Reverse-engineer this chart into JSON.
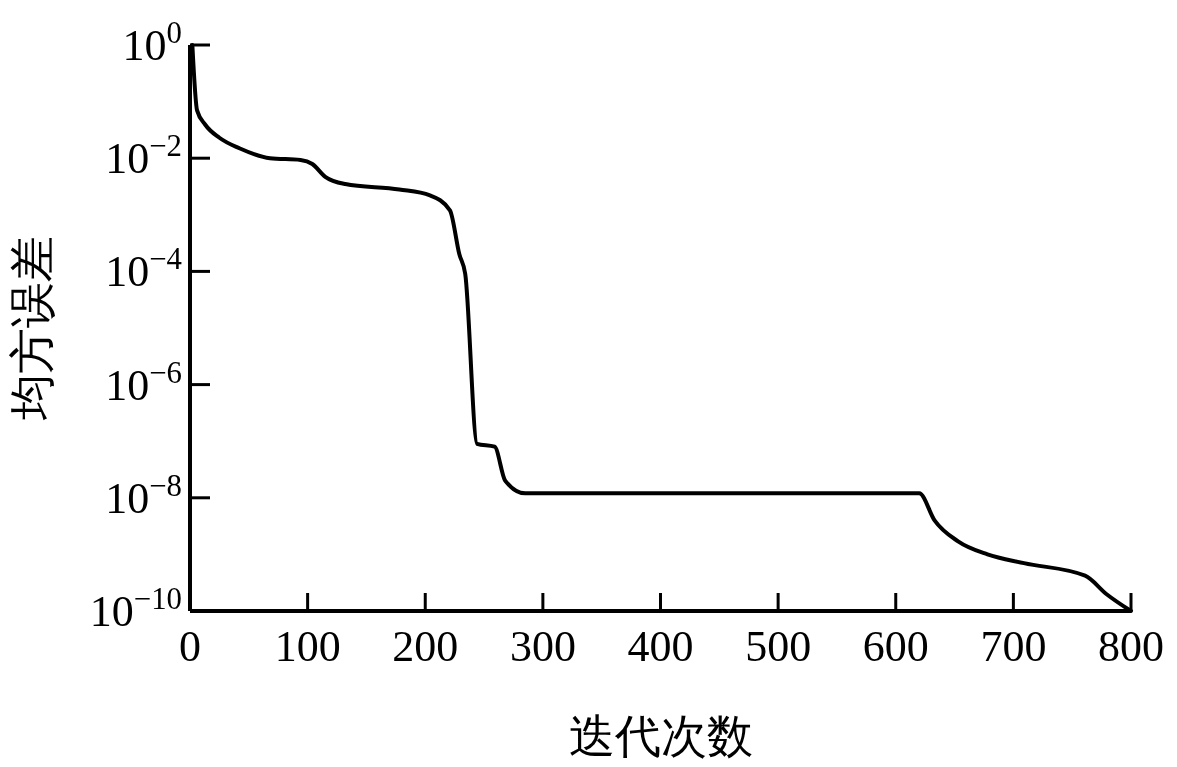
{
  "chart_data": {
    "type": "line",
    "xlabel": "迭代次数",
    "ylabel": "均方误差",
    "log": true,
    "grid": false,
    "marker": "none",
    "line_style": "solid",
    "xlim": [
      0,
      800
    ],
    "xticks": [
      0,
      100,
      200,
      300,
      400,
      500,
      600,
      700,
      800
    ],
    "ylim": [
      1e-10,
      1
    ],
    "yticks": [
      {
        "value": 1,
        "label": "10$^{0}$"
      },
      {
        "value": 0.01,
        "label": "10$^{−2}$"
      },
      {
        "value": 0.0001,
        "label": "10$^{−4}$"
      },
      {
        "value": 1e-06,
        "label": "10$^{−6}$"
      },
      {
        "value": 1e-08,
        "label": "10$^{−8}$"
      },
      {
        "value": 1e-10,
        "label": "10$^{−10}$"
      }
    ],
    "series": [
      {
        "color": "#000000",
        "x": [
          2,
          6,
          13,
          25,
          42,
          68,
          94,
          104,
          115,
          132,
          178,
          204,
          221,
          229,
          234,
          244,
          259,
          268,
          285,
          400,
          500,
          620,
          633,
          653,
          678,
          709,
          761,
          779,
          800
        ],
        "values": [
          1,
          0.07,
          0.039,
          0.023,
          0.015,
          0.01,
          0.0093,
          0.0079,
          0.0047,
          0.0035,
          0.0028,
          0.0022,
          0.0012,
          0.0002,
          9e-05,
          9e-08,
          8e-08,
          2e-08,
          1.2e-08,
          1.2e-08,
          1.2e-08,
          1.2e-08,
          4e-09,
          1.7e-09,
          1e-09,
          7e-10,
          4.2e-10,
          2e-10,
          1e-10
        ]
      }
    ]
  }
}
